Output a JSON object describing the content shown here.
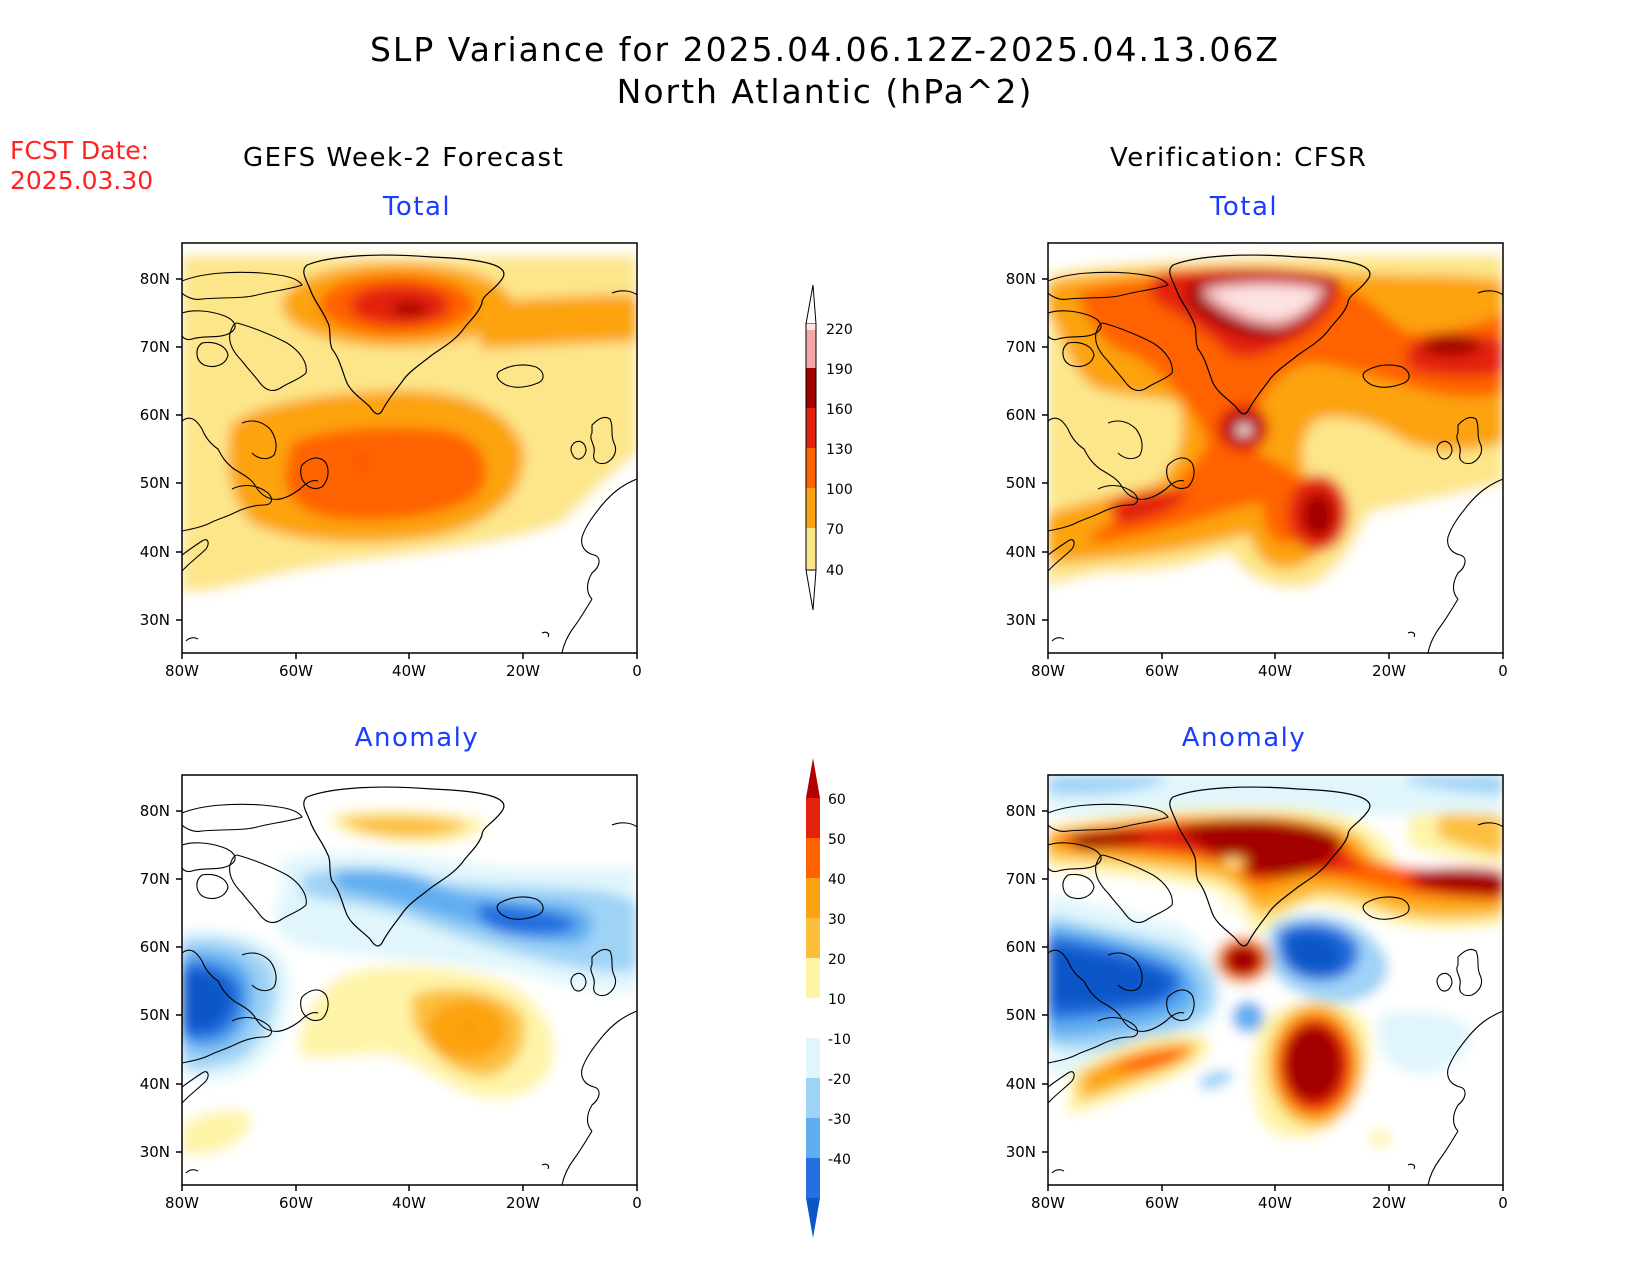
{
  "title": {
    "line1": "SLP Variance for 2025.04.06.12Z-2025.04.13.06Z",
    "line2": "North Atlantic (hPa^2)"
  },
  "fcst": {
    "label": "FCST Date:",
    "date": "2025.03.30"
  },
  "columns": {
    "left": "GEFS Week-2 Forecast",
    "right": "Verification: CFSR"
  },
  "panels": {
    "total": "Total",
    "anomaly": "Anomaly"
  },
  "axes": {
    "lon_ticks": [
      "80W",
      "60W",
      "40W",
      "20W",
      "0"
    ],
    "lat_ticks": [
      "80N",
      "70N",
      "60N",
      "50N",
      "40N",
      "30N"
    ]
  },
  "colorbar_total": {
    "levels": [
      "40",
      "70",
      "100",
      "130",
      "160",
      "190",
      "220"
    ],
    "colors": [
      "#fde68a",
      "#fca311",
      "#ff6200",
      "#e3220d",
      "#a30000",
      "#f3a7a7",
      "#fde3e3"
    ]
  },
  "colorbar_anomaly": {
    "levels": [
      "60",
      "50",
      "40",
      "30",
      "20",
      "10",
      "-10",
      "-20",
      "-30",
      "-40"
    ],
    "colors": [
      "#b00000",
      "#e3220d",
      "#ff6200",
      "#fca311",
      "#fcbf3c",
      "#fef4a8",
      "#ffffff",
      "#e0f6fc",
      "#9fd3f6",
      "#60aef0",
      "#2470e0",
      "#0b56c8"
    ]
  }
}
